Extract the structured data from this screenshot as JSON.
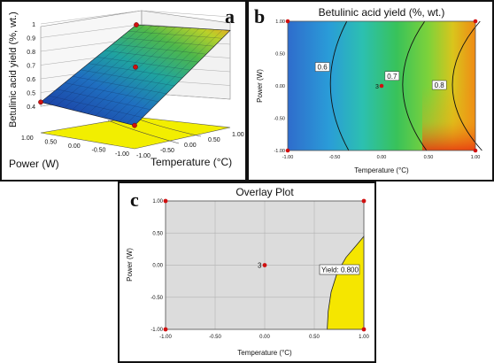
{
  "chart_data": [
    {
      "panel_letter": "a",
      "type": "surface3d",
      "zlabel": "Betulinic acid yield (%, wt.)",
      "xlabel": "Temperature (°C)",
      "ylabel": "Power (W)",
      "ztick_labels": [
        "0.4",
        "0.5",
        "0.6",
        "0.7",
        "0.8",
        "0.9",
        "1"
      ],
      "xtick_labels": [
        "-1.00",
        "-0.50",
        "0.00",
        "0.50",
        "1.00"
      ],
      "ytick_labels": [
        "-1.00",
        "-0.50",
        "0.00",
        "0.50",
        "1.00"
      ],
      "zlim": [
        0.4,
        1.0
      ],
      "surface_corners": {
        "temp_-1_power_1": 0.5,
        "temp_1_power_1": 0.88,
        "temp_-1_power_-1": 0.45,
        "temp_1_power_-1": 0.95
      },
      "design_points": [
        {
          "temperature": 1,
          "power": 1,
          "yield": 0.88
        },
        {
          "temperature": -1,
          "power": 1,
          "yield": 0.5
        },
        {
          "temperature": 0,
          "power": 0,
          "yield": 0.72
        },
        {
          "temperature": -1,
          "power": -1,
          "yield": 0.45
        }
      ],
      "floor_color": "#f2ee00"
    },
    {
      "panel_letter": "b",
      "type": "contour",
      "title": "Betulinic acid yield (%, wt.)",
      "xlabel": "Temperature (°C)",
      "ylabel": "Power (W)",
      "xticks": [
        -1.0,
        -0.5,
        0.0,
        0.5,
        1.0
      ],
      "yticks": [
        -1.0,
        -0.5,
        0.0,
        0.5,
        1.0
      ],
      "tick_labels": [
        "-1.00",
        "-0.50",
        "0.00",
        "0.50",
        "1.00"
      ],
      "xlim": [
        -1,
        1
      ],
      "ylim": [
        -1,
        1
      ],
      "contour_levels": [
        {
          "label": "0.6",
          "x_at_power_0": -0.55
        },
        {
          "label": "0.7",
          "x_at_power_0": 0.22
        },
        {
          "label": "0.8",
          "x_at_power_0": 0.75
        }
      ],
      "center_point_label": "3",
      "design_points": [
        [
          -1,
          1
        ],
        [
          1,
          1
        ],
        [
          0,
          0
        ],
        [
          -1,
          -1
        ],
        [
          1,
          -1
        ]
      ]
    },
    {
      "panel_letter": "c",
      "type": "overlay",
      "title": "Overlay Plot",
      "xlabel": "Temperature (°C)",
      "ylabel": "Power (W)",
      "xticks": [
        -1.0,
        -0.5,
        0.0,
        0.5,
        1.0
      ],
      "yticks": [
        -1.0,
        -0.5,
        0.0,
        0.5,
        1.0
      ],
      "tick_labels": [
        "-1.00",
        "-0.50",
        "0.00",
        "0.50",
        "1.00"
      ],
      "xlim": [
        -1,
        1
      ],
      "ylim": [
        -1,
        1
      ],
      "annotation": "Yield: 0.800",
      "center_point_label": "3",
      "feasible_region_color": "#f5e600",
      "boundary": [
        [
          1.0,
          0.45
        ],
        [
          0.93,
          0.32
        ],
        [
          0.82,
          0.12
        ],
        [
          0.73,
          -0.12
        ],
        [
          0.67,
          -0.42
        ],
        [
          0.64,
          -0.72
        ],
        [
          0.63,
          -1.0
        ]
      ],
      "design_points": [
        [
          -1,
          1
        ],
        [
          1,
          1
        ],
        [
          0,
          0
        ],
        [
          -1,
          -1
        ],
        [
          1,
          -1
        ]
      ]
    }
  ]
}
